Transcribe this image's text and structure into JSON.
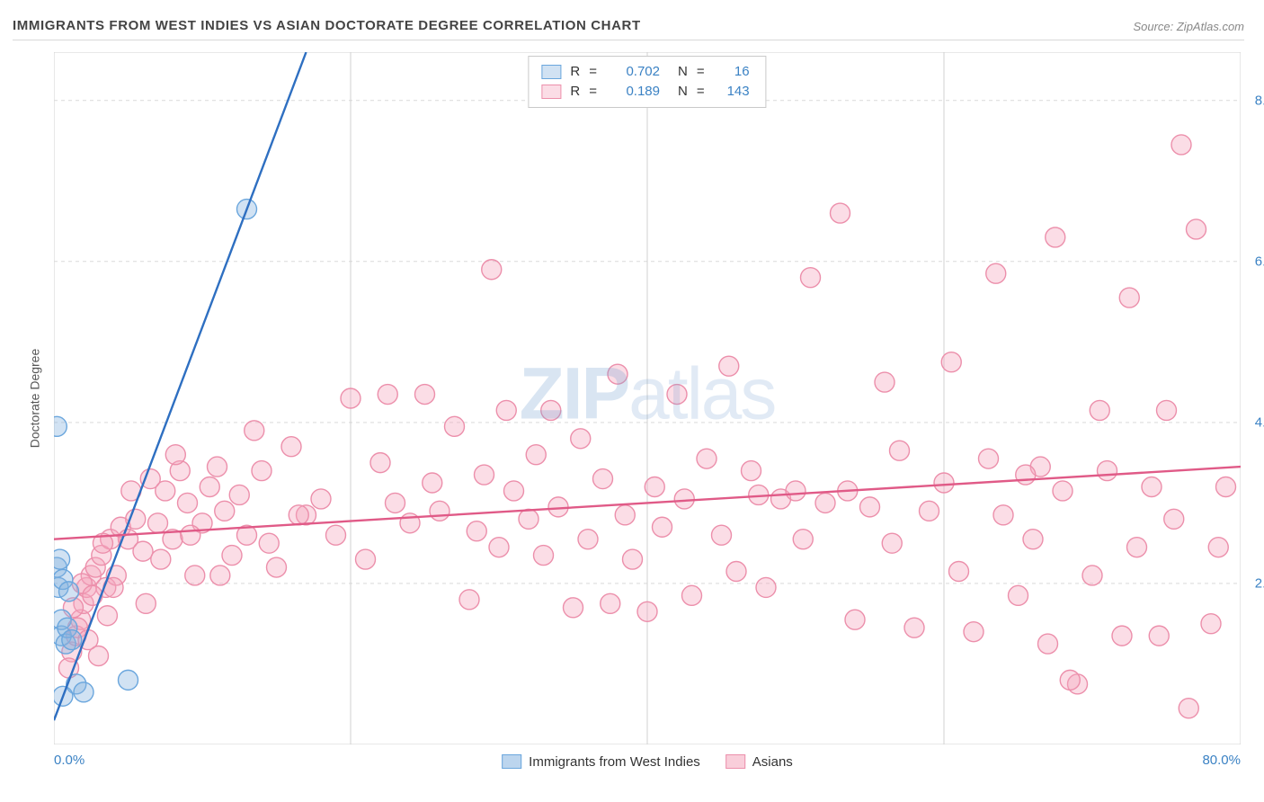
{
  "header": {
    "title": "IMMIGRANTS FROM WEST INDIES VS ASIAN DOCTORATE DEGREE CORRELATION CHART",
    "source": "Source: ZipAtlas.com"
  },
  "watermark": {
    "bold": "ZIP",
    "rest": "atlas"
  },
  "chart": {
    "type": "scatter",
    "background_color": "#ffffff",
    "grid_color": "#d9d9d9",
    "grid_dash": "4,4",
    "axis_color": "#d0d0d0",
    "ylabel": "Doctorate Degree",
    "label_fontsize": 14,
    "label_color": "#555555",
    "xlim": [
      0,
      80
    ],
    "ylim": [
      0,
      8.6
    ],
    "xtick_major": [
      0,
      20,
      40,
      60,
      80
    ],
    "xtick_labels": {
      "left": "0.0%",
      "right": "80.0%"
    },
    "ytick_positions": [
      2.0,
      4.0,
      6.0,
      8.0
    ],
    "ytick_labels": [
      "2.0%",
      "4.0%",
      "6.0%",
      "8.0%"
    ],
    "tick_color": "#3b82c4",
    "tick_fontsize": 15,
    "marker_radius": 11,
    "marker_stroke_width": 1.4,
    "line_width": 2.4,
    "series": [
      {
        "name": "Immigrants from West Indies",
        "fill": "rgba(133,178,224,0.38)",
        "stroke": "#6aa6dd",
        "line_color": "#2e6fc1",
        "R": "0.702",
        "N": "16",
        "trend": {
          "x1": 0,
          "y1": 0.3,
          "x2": 17,
          "y2": 8.6
        },
        "points": [
          [
            0.2,
            2.2
          ],
          [
            0.3,
            1.95
          ],
          [
            0.5,
            1.35
          ],
          [
            0.5,
            1.55
          ],
          [
            0.6,
            2.05
          ],
          [
            0.8,
            1.25
          ],
          [
            0.9,
            1.45
          ],
          [
            0.2,
            3.95
          ],
          [
            1.5,
            0.75
          ],
          [
            2.0,
            0.65
          ],
          [
            1.2,
            1.3
          ],
          [
            5.0,
            0.8
          ],
          [
            1.0,
            1.9
          ],
          [
            0.6,
            0.6
          ],
          [
            0.4,
            2.3
          ],
          [
            13.0,
            6.65
          ]
        ]
      },
      {
        "name": "Asians",
        "fill": "rgba(244,166,188,0.38)",
        "stroke": "#ec8fab",
        "line_color": "#e05a87",
        "R": "0.189",
        "N": "143",
        "trend": {
          "x1": 0,
          "y1": 2.55,
          "x2": 80,
          "y2": 3.45
        },
        "points": [
          [
            1.2,
            1.15
          ],
          [
            1.5,
            1.35
          ],
          [
            1.8,
            1.55
          ],
          [
            2.0,
            1.75
          ],
          [
            2.2,
            1.95
          ],
          [
            2.5,
            2.1
          ],
          [
            2.8,
            2.2
          ],
          [
            3.0,
            1.1
          ],
          [
            3.2,
            2.35
          ],
          [
            3.5,
            1.95
          ],
          [
            3.8,
            2.55
          ],
          [
            4.2,
            2.1
          ],
          [
            4.5,
            2.7
          ],
          [
            5.0,
            2.55
          ],
          [
            5.5,
            2.8
          ],
          [
            6.0,
            2.4
          ],
          [
            6.5,
            3.3
          ],
          [
            7.0,
            2.75
          ],
          [
            7.5,
            3.15
          ],
          [
            8.0,
            2.55
          ],
          [
            8.5,
            3.4
          ],
          [
            9.0,
            3.0
          ],
          [
            9.5,
            2.1
          ],
          [
            10.0,
            2.75
          ],
          [
            10.5,
            3.2
          ],
          [
            11.0,
            3.45
          ],
          [
            11.5,
            2.9
          ],
          [
            12.0,
            2.35
          ],
          [
            12.5,
            3.1
          ],
          [
            13.0,
            2.6
          ],
          [
            14.0,
            3.4
          ],
          [
            15.0,
            2.2
          ],
          [
            16.0,
            3.7
          ],
          [
            17.0,
            2.85
          ],
          [
            18.0,
            3.05
          ],
          [
            19.0,
            2.6
          ],
          [
            20.0,
            4.3
          ],
          [
            21.0,
            2.3
          ],
          [
            22.0,
            3.5
          ],
          [
            23.0,
            3.0
          ],
          [
            24.0,
            2.75
          ],
          [
            25.0,
            4.35
          ],
          [
            25.5,
            3.25
          ],
          [
            26.0,
            2.9
          ],
          [
            27.0,
            3.95
          ],
          [
            28.0,
            1.8
          ],
          [
            28.5,
            2.65
          ],
          [
            29.0,
            3.35
          ],
          [
            29.5,
            5.9
          ],
          [
            30.0,
            2.45
          ],
          [
            30.5,
            4.15
          ],
          [
            31.0,
            3.15
          ],
          [
            32.0,
            2.8
          ],
          [
            32.5,
            3.6
          ],
          [
            33.0,
            2.35
          ],
          [
            33.5,
            4.15
          ],
          [
            34.0,
            2.95
          ],
          [
            35.0,
            1.7
          ],
          [
            35.5,
            3.8
          ],
          [
            36.0,
            2.55
          ],
          [
            37.0,
            3.3
          ],
          [
            38.0,
            4.6
          ],
          [
            38.5,
            2.85
          ],
          [
            39.0,
            2.3
          ],
          [
            40.0,
            1.65
          ],
          [
            40.5,
            3.2
          ],
          [
            41.0,
            2.7
          ],
          [
            42.0,
            4.35
          ],
          [
            42.5,
            3.05
          ],
          [
            43.0,
            1.85
          ],
          [
            44.0,
            3.55
          ],
          [
            45.0,
            2.6
          ],
          [
            45.5,
            4.7
          ],
          [
            46.0,
            2.15
          ],
          [
            47.0,
            3.4
          ],
          [
            47.5,
            3.1
          ],
          [
            48.0,
            1.95
          ],
          [
            49.0,
            3.05
          ],
          [
            50.0,
            3.15
          ],
          [
            50.5,
            2.55
          ],
          [
            51.0,
            5.8
          ],
          [
            52.0,
            3.0
          ],
          [
            53.0,
            6.6
          ],
          [
            53.5,
            3.15
          ],
          [
            54.0,
            1.55
          ],
          [
            55.0,
            2.95
          ],
          [
            56.0,
            4.5
          ],
          [
            56.5,
            2.5
          ],
          [
            57.0,
            3.65
          ],
          [
            58.0,
            1.45
          ],
          [
            59.0,
            2.9
          ],
          [
            60.0,
            3.25
          ],
          [
            60.5,
            4.75
          ],
          [
            61.0,
            2.15
          ],
          [
            62.0,
            1.4
          ],
          [
            63.0,
            3.55
          ],
          [
            63.5,
            5.85
          ],
          [
            64.0,
            2.85
          ],
          [
            65.0,
            1.85
          ],
          [
            66.0,
            2.55
          ],
          [
            66.5,
            3.45
          ],
          [
            67.0,
            1.25
          ],
          [
            67.5,
            6.3
          ],
          [
            68.0,
            3.15
          ],
          [
            69.0,
            0.75
          ],
          [
            70.0,
            2.1
          ],
          [
            70.5,
            4.15
          ],
          [
            71.0,
            3.4
          ],
          [
            72.0,
            1.35
          ],
          [
            72.5,
            5.55
          ],
          [
            73.0,
            2.45
          ],
          [
            74.0,
            3.2
          ],
          [
            74.5,
            1.35
          ],
          [
            75.0,
            4.15
          ],
          [
            75.5,
            2.8
          ],
          [
            76.0,
            7.45
          ],
          [
            76.5,
            0.45
          ],
          [
            77.0,
            6.4
          ],
          [
            78.0,
            1.5
          ],
          [
            78.5,
            2.45
          ],
          [
            79.0,
            3.2
          ],
          [
            1.0,
            0.95
          ],
          [
            1.3,
            1.7
          ],
          [
            1.6,
            1.45
          ],
          [
            1.9,
            2.0
          ],
          [
            2.3,
            1.3
          ],
          [
            2.6,
            1.85
          ],
          [
            3.3,
            2.5
          ],
          [
            3.6,
            1.6
          ],
          [
            4.0,
            1.95
          ],
          [
            5.2,
            3.15
          ],
          [
            6.2,
            1.75
          ],
          [
            7.2,
            2.3
          ],
          [
            8.2,
            3.6
          ],
          [
            9.2,
            2.6
          ],
          [
            11.2,
            2.1
          ],
          [
            13.5,
            3.9
          ],
          [
            14.5,
            2.5
          ],
          [
            16.5,
            2.85
          ],
          [
            22.5,
            4.35
          ],
          [
            37.5,
            1.75
          ],
          [
            68.5,
            0.8
          ],
          [
            65.5,
            3.35
          ]
        ]
      }
    ],
    "legend_bottom": [
      {
        "label": "Immigrants from West Indies",
        "fill": "rgba(133,178,224,0.55)",
        "stroke": "#6aa6dd"
      },
      {
        "label": "Asians",
        "fill": "rgba(244,166,188,0.55)",
        "stroke": "#ec8fab"
      }
    ]
  }
}
